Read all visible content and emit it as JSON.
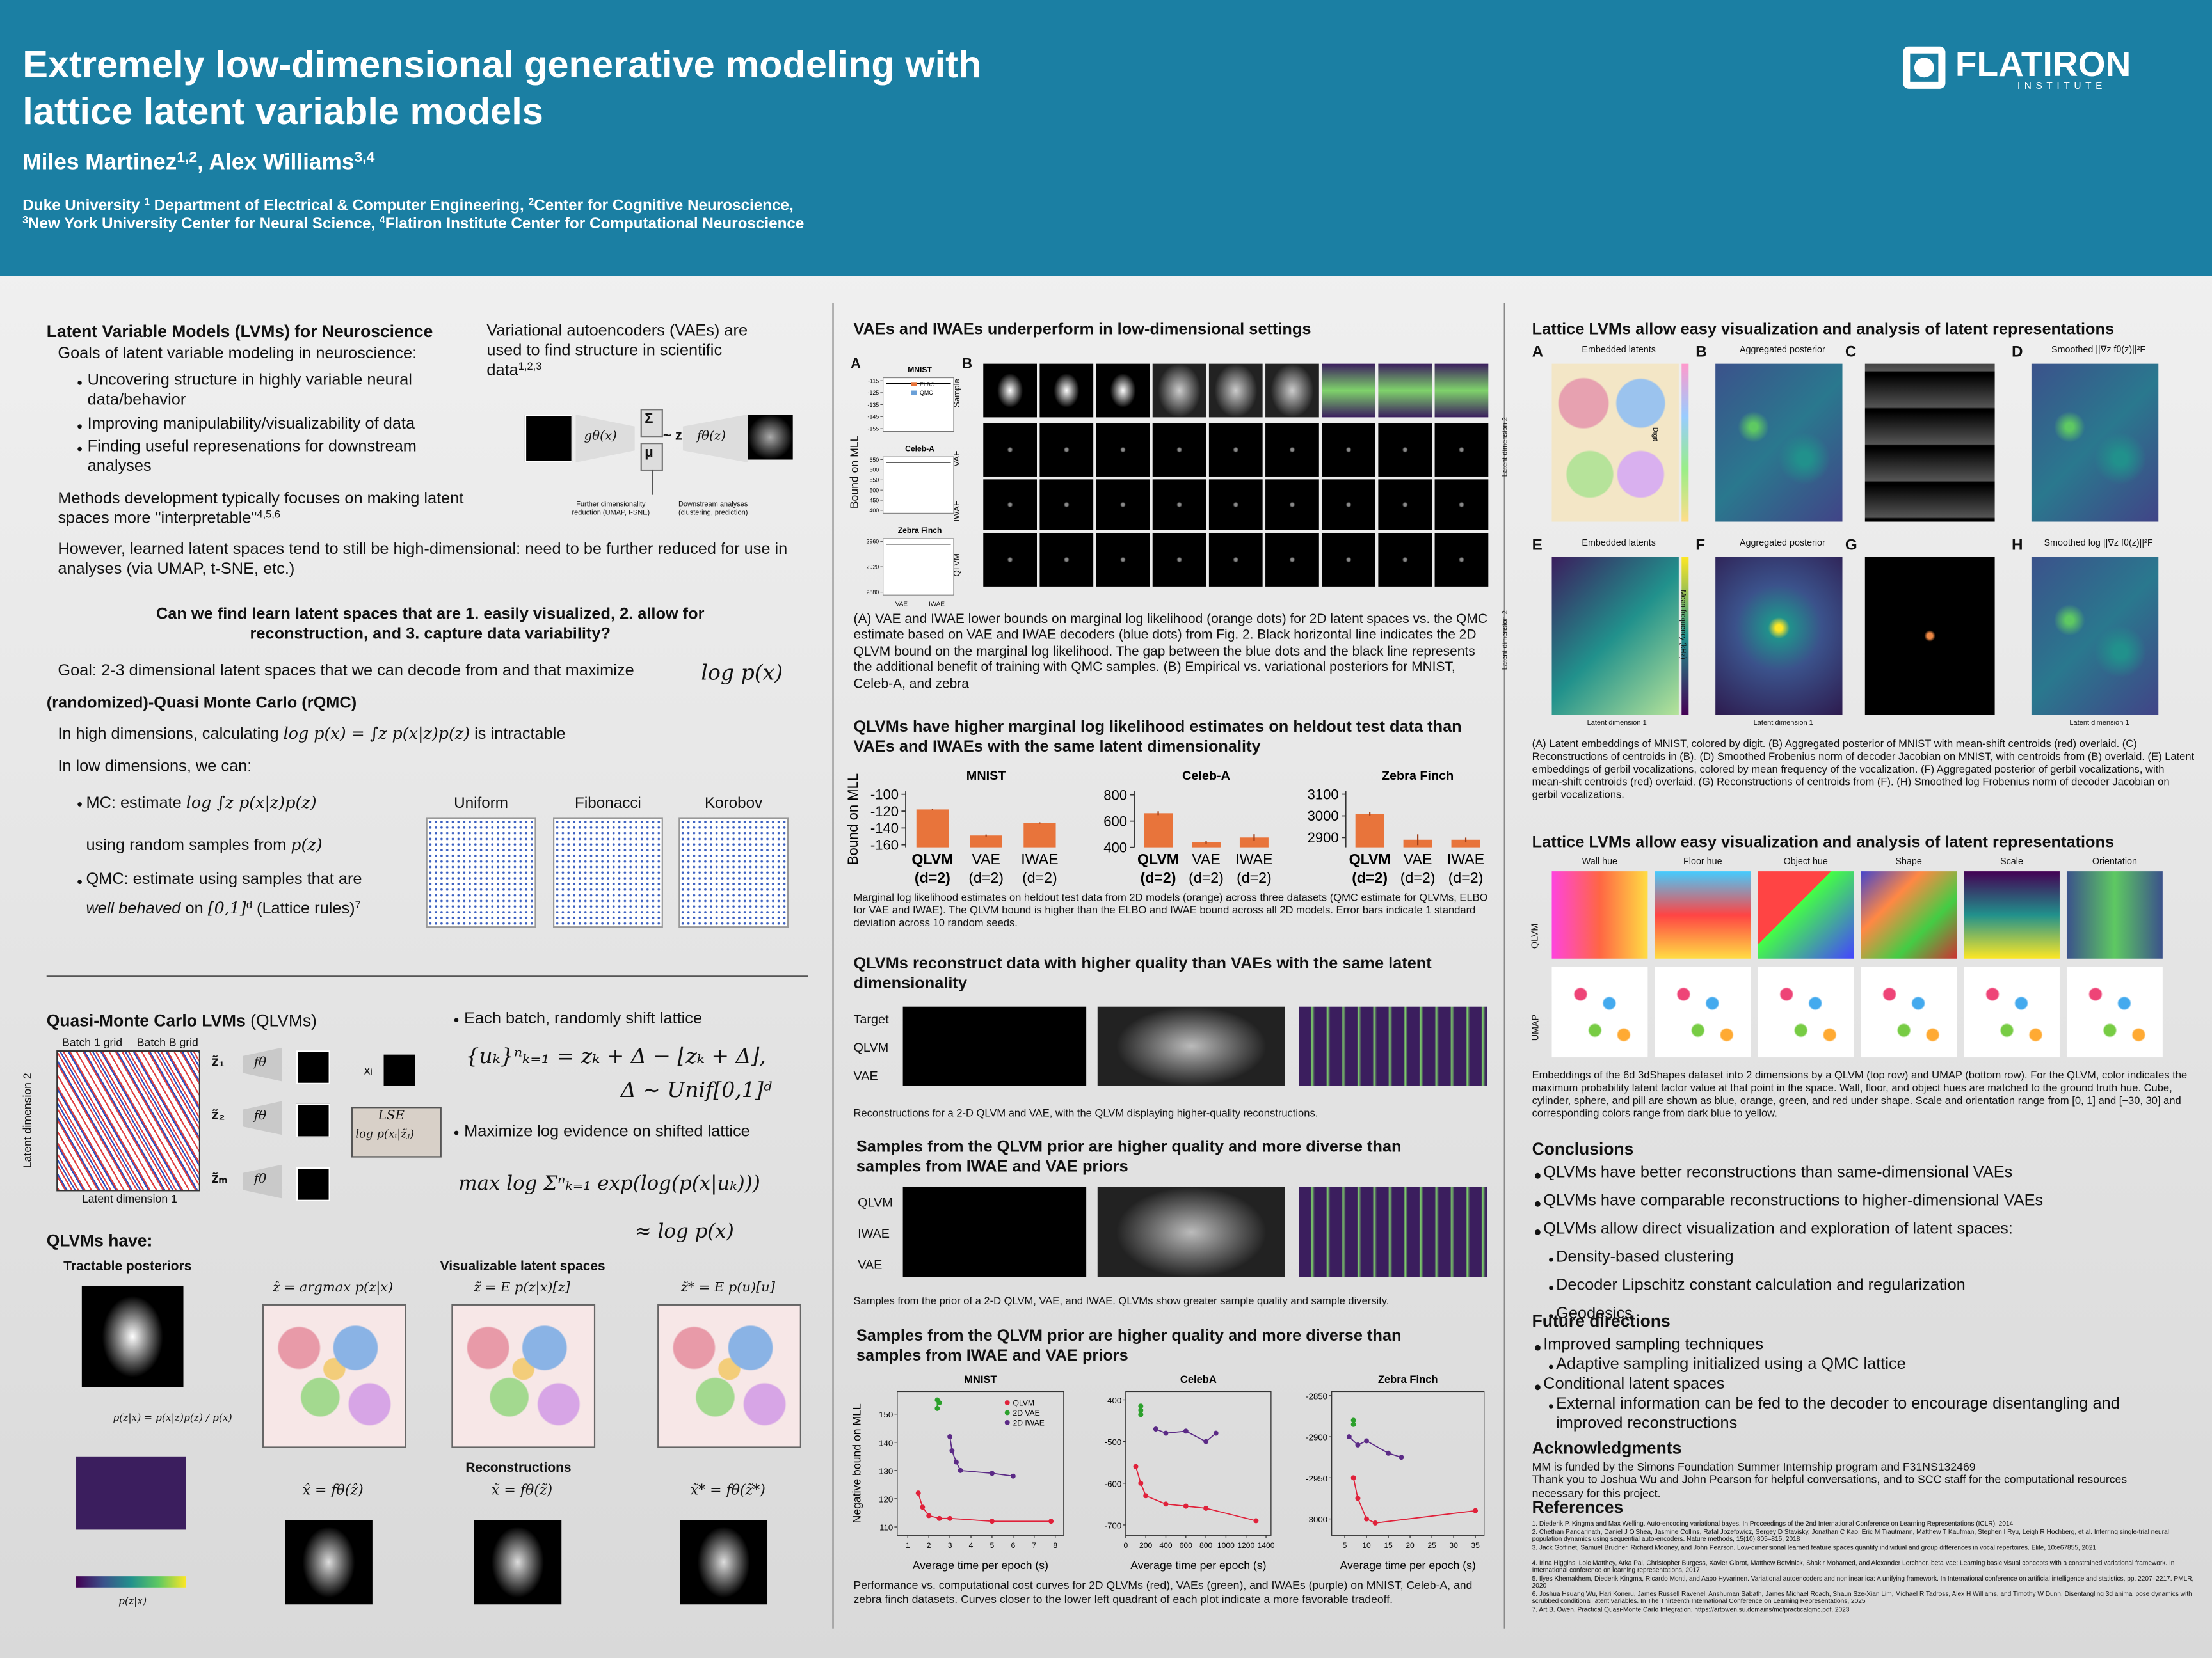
{
  "header": {
    "title_line1": "Extremely low-dimensional generative modeling with",
    "title_line2": "lattice latent variable models",
    "authors": [
      {
        "t": "Miles Martinez"
      },
      {
        "s": "1,2"
      },
      {
        "t": ", Alex Williams"
      },
      {
        "s": "3,4"
      }
    ],
    "affiliations_line1": [
      {
        "t": "Duke University "
      },
      {
        "s": "1"
      },
      {
        "t": " Department of Electrical & Computer Engineering, "
      },
      {
        "s": "2"
      },
      {
        "t": "Center for Cognitive Neuroscience,"
      }
    ],
    "affiliations_line2": [
      {
        "s": "3"
      },
      {
        "t": "New York University Center for Neural Science, "
      },
      {
        "s": "4"
      },
      {
        "t": "Flatiron Institute Center for Computational Neuroscience"
      }
    ],
    "logo": "FLATIRON",
    "logo_sub": "INSTITUTE"
  },
  "intro": {
    "heading": "Latent Variable Models (LVMs) for Neuroscience",
    "goals": "Goals of latent variable modeling in neuroscience:",
    "goal_bullets": [
      "Uncovering structure in highly variable neural data/behavior",
      "Improving manipulability/visualizability of data",
      "Finding useful represenations for downstream analyses"
    ],
    "methods": [
      {
        "t": "Methods development typically focuses on making latent spaces more \"interpretable\""
      },
      {
        "s": "4,5,6"
      }
    ],
    "however": "However, learned latent spaces tend to still be high-dimensional: need to be further reduced for use in analyses (via UMAP, t-SNE, etc.)",
    "vae_text": [
      {
        "t": "Variational autoencoders (VAEs) are used to find structure in scientific data"
      },
      {
        "s": "1,2,3"
      }
    ],
    "diagram": {
      "encoder": "gθ(x)",
      "sigma": "Σ",
      "mu": "μ",
      "z": "~ z",
      "decoder": "fθ(z)",
      "reduction": "Further dimensionality reduction (UMAP, t-SNE)",
      "downstream": "Downstream analyses (clustering, prediction)"
    },
    "question": "Can we find learn latent spaces that are 1. easily visualized, 2. allow for reconstruction, and 3. capture data variability?",
    "goal": "Goal: 2-3 dimensional latent spaces that we can decode from and that maximize",
    "goal_math": "log p(x)",
    "rqmc": "(randomized)-Quasi Monte Carlo (rQMC)",
    "high_dim": [
      {
        "t": "In high dimensions, calculating "
      },
      {
        "m": "log p(x) = ∫z p(x|z)p(z)"
      },
      {
        "t": " is intractable"
      }
    ],
    "low_dim": "In low dimensions, we can:",
    "mc": [
      {
        "t": "MC: estimate "
      },
      {
        "m": "log ∫z p(x|z)p(z)"
      }
    ],
    "mc2": [
      {
        "t": "using random samples from "
      },
      {
        "m": "p(z)"
      }
    ],
    "qmc": "QMC: estimate using samples that are",
    "qmc2": [
      {
        "i": "well behaved"
      },
      {
        "t": " on "
      },
      {
        "m": "[0,1]"
      },
      {
        "s": "d"
      },
      {
        "t": " (Lattice rules)"
      },
      {
        "s": "7"
      }
    ],
    "point_sets": [
      "Uniform",
      "Fibonacci",
      "Korobov"
    ]
  },
  "qlvm": {
    "heading": [
      {
        "b": "Quasi-Monte Carlo LVMs"
      },
      {
        "t": " (QLVMs)"
      }
    ],
    "batch1": "Batch 1 grid",
    "batchB": "Batch B grid",
    "ylab": "Latent dimension 2",
    "xlab": "Latent dimension 1",
    "z_labels": [
      "z̃₁",
      "z̃₂",
      "z̃ₘ"
    ],
    "decoder": "fθ",
    "x_input": "xᵢ",
    "lse": "LSE",
    "lse_term": "log p(xᵢ|z̃ⱼ)",
    "shift": "Each batch, randomly shift lattice",
    "shift_eq1": "{uₖ}ⁿₖ₌₁ = zₖ + Δ − ⌊zₖ + Δ⌋,",
    "shift_eq2": "Δ ∼ Unif[0,1]ᵈ",
    "maximize": "Maximize log evidence on shifted lattice",
    "max_eq": "max log Σⁿₖ₌₁ exp(log(p(x|uₖ)))",
    "approx": "≈ log p(x)",
    "have": "QLVMs have:",
    "tractable": "Tractable posteriors",
    "visualizable": "Visualizable latent spaces",
    "bayes": "p(z|x) = p(x|z)p(z) / p(x)",
    "posterior_label": "p(z|x)",
    "estimators": [
      "ẑ = argmax p(z|x)",
      "z̃ = E p(z|x)[z]",
      "z̃* = E p(u)[u]"
    ],
    "reconstructions": "Reconstructions",
    "recon_eqs": [
      "x̂ = fθ(ẑ)",
      "x̃ = fθ(z̃)",
      "x̃* = fθ(z̃*)"
    ]
  },
  "results": {
    "vae_heading": "VAEs and IWAEs underperform in low-dimensional settings",
    "fig_a": {
      "label": "A",
      "y_label": "Bound on MLL",
      "legend": [
        "ELBO",
        "QMC"
      ],
      "x_labels": [
        "VAE",
        "IWAE"
      ],
      "panels": [
        {
          "title": "MNIST",
          "yticks": [
            -115,
            -125,
            -135,
            -145,
            -155
          ]
        },
        {
          "title": "Celeb-A",
          "yticks": [
            650,
            600,
            550,
            500,
            450,
            400
          ]
        },
        {
          "title": "Zebra Finch",
          "yticks": [
            2960,
            2920,
            2880
          ]
        }
      ]
    },
    "fig_b": {
      "label": "B",
      "rows": [
        "Sample",
        "VAE",
        "IWAE",
        "QLVM"
      ]
    },
    "caption_1": "(A) VAE and IWAE lower bounds on marginal log likelihood (orange dots) for 2D latent spaces vs. the QMC estimate based on VAE and IWAE decoders (blue dots) from Fig. 2. Black horizontal line indicates the 2D QLVM bound on the marginal log likelihood. The gap between the blue dots and the black line represents the additional benefit of training with QMC samples. (B) Empirical vs. variational posteriors for MNIST, Celeb-A, and zebra",
    "mll_heading": "QLVMs have higher marginal log likelihood estimates on heldout test data than VAEs and IWAEs with the same latent dimensionality",
    "mll_caption": "Marginal log likelihood estimates on heldout test data from 2D models (orange) across three datasets (QMC estimate for QLVMs, ELBO for VAE and IWAE). The QLVM bound is higher than the ELBO and IWAE bound across all 2D models. Error bars indicate 1 standard deviation across 10 random seeds.",
    "recon_heading": "QLVMs reconstruct data with higher quality than VAEs with the same latent dimensionality",
    "recon_rows": [
      "Target",
      "QLVM",
      "VAE"
    ],
    "recon_caption": "Reconstructions for a 2-D QLVM and VAE, with the QLVM displaying higher-quality reconstructions.",
    "samples_heading": "Samples from the QLVM prior are higher quality and more diverse than samples from IWAE and VAE priors",
    "sample_rows": [
      "QLVM",
      "IWAE",
      "VAE"
    ],
    "samples_caption": "Samples from the prior of a 2-D QLVM, VAE, and IWAE. QLVMs show greater sample quality and sample diversity.",
    "cost_heading": "Samples from the QLVM prior are higher quality and more diverse than samples from IWAE and VAE priors",
    "cost_caption": "Performance vs. computational cost curves for 2D QLVMs (red), VAEs (green), and IWAEs (purple) on MNIST, Celeb-A, and zebra finch datasets. Curves closer to the lower left quadrant of each plot indicate a more favorable tradeoff."
  },
  "chart_data": [
    {
      "type": "bar",
      "title": "MNIST",
      "y_label": "Bound on MLL",
      "categories": [
        "QLVM",
        "VAE",
        "IWAE"
      ],
      "category_notes": [
        "(d=2)",
        "(d=2)",
        "(d=2)"
      ],
      "values": [
        -118,
        -149,
        -134
      ],
      "errors": [
        0.8,
        1.2,
        0.8
      ],
      "color": "#e8743b",
      "ylim": [
        -163,
        -96
      ],
      "yticks": [
        -100,
        -120,
        -140,
        -160
      ]
    },
    {
      "type": "bar",
      "title": "Celeb-A",
      "categories": [
        "QLVM",
        "VAE",
        "IWAE"
      ],
      "category_notes": [
        "(d=2)",
        "(d=2)",
        "(d=2)"
      ],
      "values": [
        660,
        440,
        475
      ],
      "errors": [
        15,
        12,
        25
      ],
      "color": "#e8743b",
      "ylim": [
        400,
        830
      ],
      "yticks": [
        400,
        600,
        800
      ]
    },
    {
      "type": "bar",
      "title": "Zebra Finch",
      "categories": [
        "QLVM",
        "VAE",
        "IWAE"
      ],
      "category_notes": [
        "(d=2)",
        "(d=2)",
        "(d=2)"
      ],
      "values": [
        3010,
        2890,
        2890
      ],
      "errors": [
        8,
        25,
        10
      ],
      "color": "#e8743b",
      "ylim": [
        2855,
        3115
      ],
      "yticks": [
        2900,
        3000,
        3100
      ]
    },
    {
      "type": "scatter",
      "title": "MNIST",
      "y_label": "Negative bound on MLL",
      "x_label": "Average time per epoch (s)",
      "legend": "upper right",
      "xlim": [
        0.5,
        8.4
      ],
      "ylim": [
        107,
        158
      ],
      "xticks": [
        1,
        2,
        3,
        4,
        5,
        6,
        7,
        8
      ],
      "yticks": [
        110,
        120,
        130,
        140,
        150
      ],
      "series": [
        {
          "name": "QLVM",
          "color": "#e0213a",
          "x": [
            1.5,
            1.7,
            2.0,
            2.5,
            3.0,
            5.0,
            7.8
          ],
          "values": [
            122,
            117,
            114,
            113,
            113,
            112,
            112
          ]
        },
        {
          "name": "2D VAE",
          "color": "#2ca02c",
          "x": [
            2.4,
            2.4,
            2.5
          ],
          "values": [
            152,
            155,
            154
          ]
        },
        {
          "name": "2D IWAE",
          "color": "#5b2a86",
          "x": [
            3.0,
            3.1,
            3.3,
            3.5,
            5.0,
            6.0
          ],
          "values": [
            142,
            137,
            133,
            130,
            129,
            128
          ]
        }
      ]
    },
    {
      "type": "scatter",
      "title": "CelebA",
      "x_label": "Average time per epoch (s)",
      "xlim": [
        0,
        1450
      ],
      "ylim": [
        -725,
        -380
      ],
      "xticks": [
        0,
        200,
        400,
        600,
        800,
        1000,
        1200,
        1400
      ],
      "yticks": [
        -400,
        -500,
        -600,
        -700
      ],
      "series": [
        {
          "color": "#e0213a",
          "x": [
            100,
            150,
            200,
            400,
            600,
            800,
            1300
          ],
          "values": [
            -560,
            -600,
            -630,
            -650,
            -655,
            -660,
            -690
          ]
        },
        {
          "color": "#2ca02c",
          "x": [
            150,
            150,
            150
          ],
          "values": [
            -415,
            -425,
            -435
          ]
        },
        {
          "color": "#5b2a86",
          "x": [
            300,
            400,
            600,
            800,
            900
          ],
          "values": [
            -470,
            -480,
            -475,
            -500,
            -480
          ]
        }
      ]
    },
    {
      "type": "scatter",
      "title": "Zebra Finch",
      "x_label": "Average time per epoch (s)",
      "xlim": [
        2,
        37
      ],
      "ylim": [
        -3020,
        -2845
      ],
      "xticks": [
        5,
        10,
        15,
        20,
        25,
        30,
        35
      ],
      "yticks": [
        -2850,
        -2900,
        -2950,
        -3000
      ],
      "series": [
        {
          "color": "#e0213a",
          "x": [
            7,
            8,
            10,
            12,
            35
          ],
          "values": [
            -2950,
            -2975,
            -3000,
            -3005,
            -2990
          ]
        },
        {
          "color": "#2ca02c",
          "x": [
            7,
            7
          ],
          "values": [
            -2880,
            -2885
          ]
        },
        {
          "color": "#5b2a86",
          "x": [
            6,
            8,
            10,
            15,
            18
          ],
          "values": [
            -2900,
            -2910,
            -2905,
            -2920,
            -2925
          ]
        }
      ]
    }
  ],
  "latents": {
    "heading": "Lattice LVMs allow easy visualization and analysis of latent representations",
    "panel_labels": [
      "A",
      "B",
      "C",
      "D",
      "E",
      "F",
      "G",
      "H"
    ],
    "panel_titles": [
      "Embedded latents",
      "Aggregated posterior",
      "Smoothed ||∇z fθ(z)||²F",
      "Embedded latents",
      "Aggregated posterior",
      "Smoothed log ||∇z fθ(z)||²F"
    ],
    "ylab": "Latent dimension 2",
    "xlab": "Latent dimension 1",
    "colorbars": [
      "Digit",
      "Mean frequency (kHz)"
    ],
    "caption": "(A) Latent embeddings of MNIST, colored by digit. (B) Aggregated posterior of MNIST with mean-shift centroids (red) overlaid. (C) Reconstructions of centroids in (B). (D) Smoothed Frobenius norm of decoder Jacobian on MNIST, with centroids from (B) overlaid. (E) Latent embeddings of gerbil vocalizations, colored by mean frequency of the vocalization. (F) Aggregated posterior of gerbil vocalizations, with mean-shift centroids (red) overlaid. (G) Reconstructions of centroids from (F). (H) Smoothed log Frobenius norm of decoder Jacobian on gerbil vocalizations."
  },
  "shapes": {
    "heading": "Lattice LVMs allow easy visualization and analysis of latent representations",
    "factors": [
      "Wall hue",
      "Floor hue",
      "Object hue",
      "Shape",
      "Scale",
      "Orientation"
    ],
    "rows": [
      "QLVM",
      "UMAP"
    ],
    "caption": "Embeddings of the 6d 3dShapes dataset into 2 dimensions by a QLVM (top row) and UMAP (bottom row). For the QLVM, color indicates the maximum probability latent factor value at that point in the space. Wall, floor, and object hues are matched to the ground truth hue. Cube, cylinder, sphere, and pill are shown as blue, orange, green, and red under shape. Scale and orientation range from [0, 1] and [−30, 30] and corresponding colors range from dark blue to yellow."
  },
  "conclusions": {
    "heading": "Conclusions",
    "items": [
      {
        "text": "QLVMs have better reconstructions than same-dimensional VAEs"
      },
      {
        "text": "QLVMs have comparable reconstructions to higher-dimensional VAEs"
      },
      {
        "text": "QLVMs allow direct visualization and exploration of latent spaces:",
        "sub": [
          "Density-based clustering",
          "Decoder Lipschitz constant calculation and regularization",
          "Geodesics"
        ]
      }
    ]
  },
  "future": {
    "heading": "Future directions",
    "items": [
      {
        "text": "Improved sampling techniques",
        "sub": [
          "Adaptive sampling initialized using a QMC lattice"
        ]
      },
      {
        "text": "Conditional latent spaces",
        "sub": [
          "External information can be fed to the decoder to encourage disentangling and improved reconstructions"
        ]
      }
    ]
  },
  "acknowledgments": {
    "heading": "Acknowledgments",
    "text": "MM is funded by the Simons Foundation Summer Internship program and F31NS132469",
    "text2": "Thank you to Joshua Wu and John Pearson for helpful conversations, and to SCC staff for the computational resources necessary for this project."
  },
  "references": {
    "heading": "References",
    "items": [
      "1. Diederik P. Kingma and Max Welling. Auto-encoding variational bayes. In Proceedings of the 2nd International Conference on Learning Representations (ICLR), 2014",
      "2. Chethan Pandarinath, Daniel J O'Shea, Jasmine Collins, Rafal Jozefowicz, Sergey D Stavisky, Jonathan C Kao, Eric M Trautmann, Matthew T Kaufman, Stephen I Ryu, Leigh R Hochberg, et al. Inferring single-trial neural population dynamics using sequential auto-encoders. Nature methods, 15(10):805–815, 2018",
      "3. Jack Goffinet, Samuel Brudner, Richard Mooney, and John Pearson. Low-dimensional learned feature spaces quantify individual and group differences in vocal repertoires. Elife, 10:e67855, 2021",
      "4. Irina Higgins, Loic Matthey, Arka Pal, Christopher Burgess, Xavier Glorot, Matthew Botvinick, Shakir Mohamed, and Alexander Lerchner. beta-vae: Learning basic visual concepts with a constrained variational framework. In International conference on learning representations, 2017",
      "5. Ilyes Khemakhem, Diederik Kingma, Ricardo Monti, and Aapo Hyvarinen. Variational autoencoders and nonlinear ica: A unifying framework. In International conference on artificial intelligence and statistics, pp. 2207–2217. PMLR, 2020",
      "6. Joshua Hsuang Wu, Hari Koneru, James Russell Ravenel, Anshuman Sabath, James Michael Roach, Shaun Sze-Xian Lim, Michael R Tadross, Alex H Williams, and Timothy W Dunn. Disentangling 3d animal pose dynamics with scrubbed conditional latent variables. In The Thirteenth International Conference on Learning Representations, 2025",
      "7. Art B. Owen. Practical Quasi-Monte Carlo Integration. https://artowen.su.domains/mc/practicalqmc.pdf, 2023"
    ]
  }
}
